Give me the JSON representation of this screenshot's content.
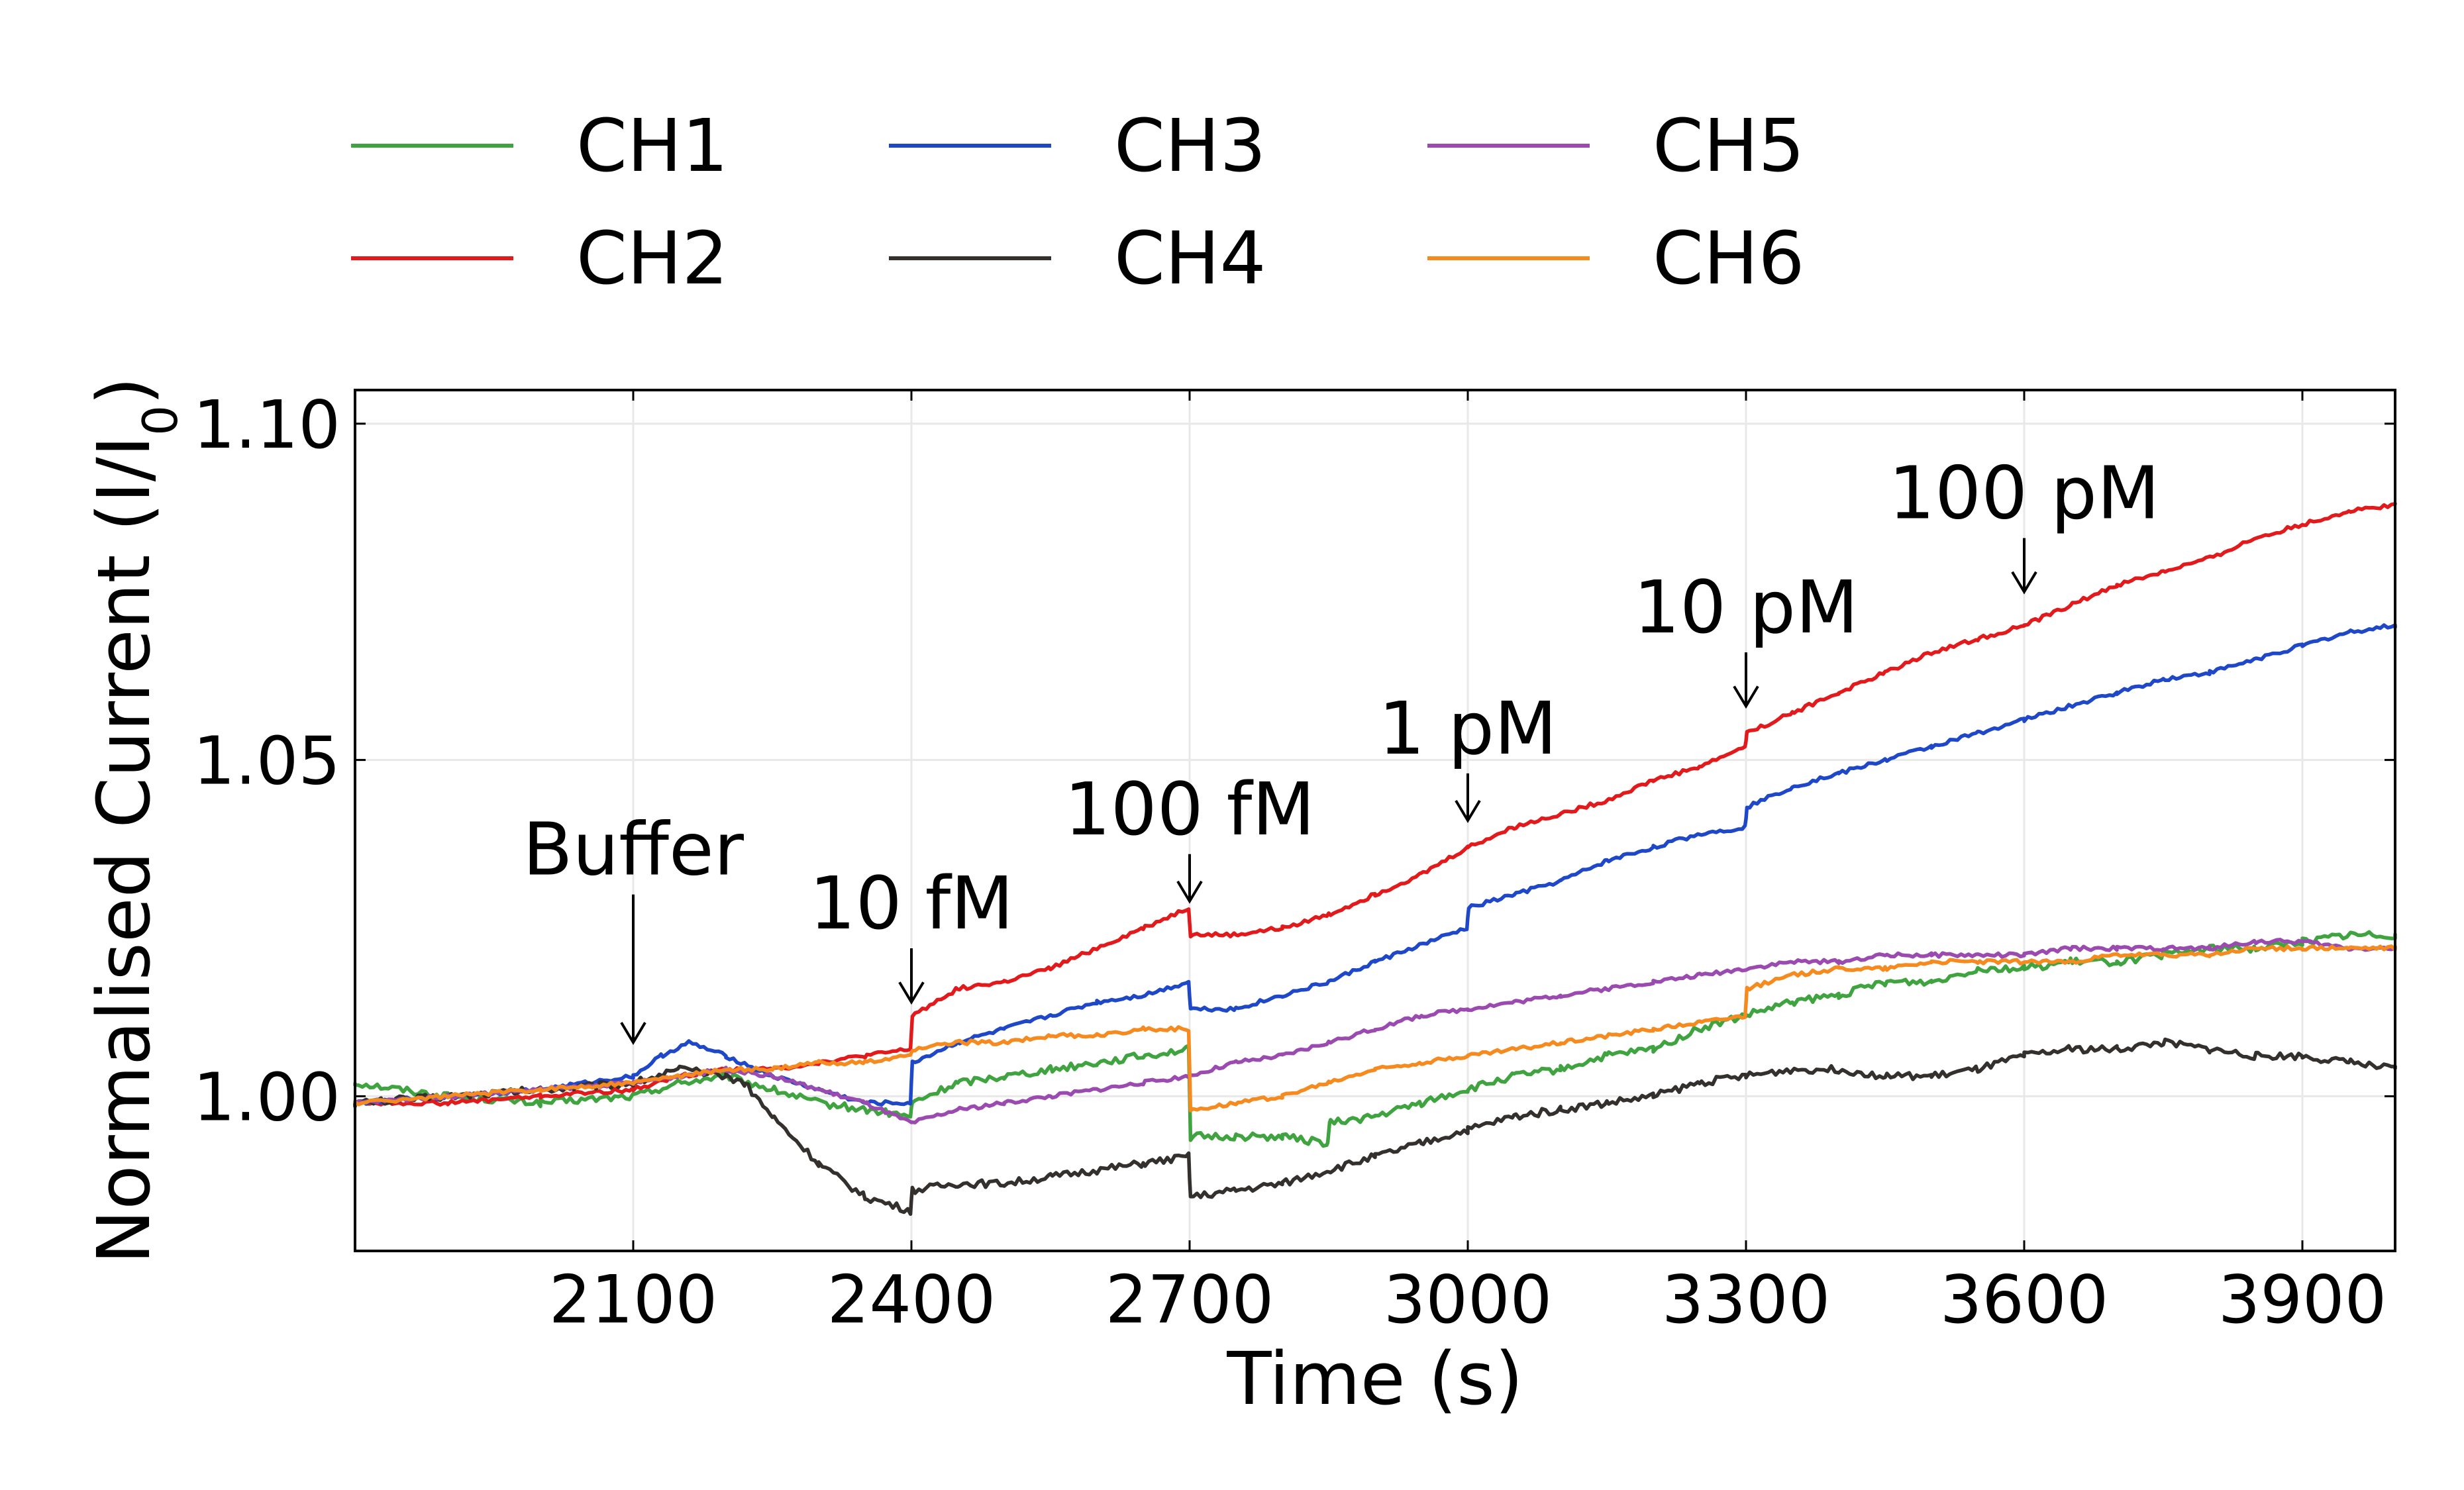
{
  "chart_data": {
    "type": "line",
    "xlabel": "Time (s)",
    "ylabel_main": "Normalised Current (I/I",
    "ylabel_sub": "0",
    "ylabel_end": ")",
    "xlim": [
      1800,
      4000
    ],
    "ylim": [
      0.977,
      1.105
    ],
    "x_ticks": [
      2100,
      2400,
      2700,
      3000,
      3300,
      3600,
      3900
    ],
    "x_tick_labels": [
      "2100",
      "2400",
      "2700",
      "3000",
      "3300",
      "3600",
      "3900"
    ],
    "y_ticks": [
      1.0,
      1.05,
      1.1
    ],
    "y_tick_labels": [
      "1.00",
      "1.05",
      "1.10"
    ],
    "grid": true,
    "legend_placement": "top, outside plot, 3 columns",
    "annotations": [
      {
        "label": "Buffer",
        "x": 2100,
        "y_tip": 1.008,
        "y_tail": 1.03
      },
      {
        "label": "10 fM",
        "x": 2400,
        "y_tip": 1.014,
        "y_tail": 1.022
      },
      {
        "label": "100 fM",
        "x": 2700,
        "y_tip": 1.029,
        "y_tail": 1.036
      },
      {
        "label": "1 pM",
        "x": 3000,
        "y_tip": 1.041,
        "y_tail": 1.048
      },
      {
        "label": "10 pM",
        "x": 3300,
        "y_tip": 1.058,
        "y_tail": 1.066
      },
      {
        "label": "100 pM",
        "x": 3600,
        "y_tip": 1.075,
        "y_tail": 1.083
      }
    ],
    "series": [
      {
        "name": "CH1",
        "color": "#3fa33f",
        "x": [
          1800,
          1900,
          2000,
          2100,
          2150,
          2200,
          2250,
          2300,
          2350,
          2399,
          2401,
          2450,
          2500,
          2550,
          2600,
          2650,
          2699,
          2701,
          2750,
          2800,
          2849,
          2851,
          2900,
          2950,
          3000,
          3050,
          3100,
          3150,
          3200,
          3250,
          3300,
          3350,
          3400,
          3450,
          3500,
          3550,
          3600,
          3650,
          3700,
          3750,
          3800,
          3850,
          3900,
          3950,
          4000
        ],
        "y": [
          1.002,
          1.0,
          0.999,
          1.0,
          1.002,
          1.003,
          1.001,
          0.999,
          0.998,
          0.997,
          0.999,
          1.002,
          1.003,
          1.004,
          1.005,
          1.006,
          1.007,
          0.994,
          0.994,
          0.994,
          0.993,
          0.996,
          0.997,
          0.999,
          1.001,
          1.003,
          1.004,
          1.006,
          1.007,
          1.01,
          1.012,
          1.014,
          1.015,
          1.017,
          1.017,
          1.019,
          1.019,
          1.02,
          1.02,
          1.021,
          1.022,
          1.022,
          1.023,
          1.024,
          1.024
        ]
      },
      {
        "name": "CH2",
        "color": "#e31a1c",
        "x": [
          1800,
          1900,
          2000,
          2100,
          2150,
          2200,
          2250,
          2300,
          2350,
          2399,
          2401,
          2450,
          2500,
          2550,
          2600,
          2650,
          2699,
          2701,
          2750,
          2800,
          2850,
          2900,
          2950,
          3000,
          3050,
          3100,
          3150,
          3200,
          3250,
          3299,
          3301,
          3350,
          3400,
          3450,
          3500,
          3550,
          3600,
          3650,
          3700,
          3750,
          3800,
          3850,
          3900,
          3950,
          4000
        ],
        "y": [
          0.999,
          0.999,
          1.0,
          1.001,
          1.003,
          1.004,
          1.004,
          1.005,
          1.006,
          1.007,
          1.012,
          1.016,
          1.017,
          1.019,
          1.022,
          1.025,
          1.028,
          1.024,
          1.024,
          1.025,
          1.027,
          1.03,
          1.033,
          1.037,
          1.04,
          1.042,
          1.044,
          1.047,
          1.049,
          1.052,
          1.054,
          1.057,
          1.06,
          1.063,
          1.066,
          1.068,
          1.07,
          1.073,
          1.076,
          1.078,
          1.08,
          1.083,
          1.085,
          1.087,
          1.088
        ]
      },
      {
        "name": "CH3",
        "color": "#1f48c8",
        "x": [
          1800,
          1900,
          2000,
          2100,
          2130,
          2160,
          2200,
          2250,
          2300,
          2350,
          2399,
          2401,
          2450,
          2500,
          2550,
          2600,
          2650,
          2699,
          2701,
          2750,
          2800,
          2850,
          2900,
          2999,
          3001,
          3050,
          3100,
          3150,
          3200,
          3250,
          3299,
          3301,
          3350,
          3400,
          3450,
          3500,
          3550,
          3600,
          3650,
          3700,
          3750,
          3800,
          3850,
          3900,
          3950,
          4000
        ],
        "y": [
          0.999,
          1.0,
          1.001,
          1.003,
          1.006,
          1.008,
          1.006,
          1.003,
          1.001,
          0.999,
          0.999,
          1.005,
          1.008,
          1.01,
          1.012,
          1.014,
          1.015,
          1.017,
          1.013,
          1.013,
          1.015,
          1.017,
          1.02,
          1.025,
          1.028,
          1.03,
          1.032,
          1.035,
          1.037,
          1.039,
          1.04,
          1.043,
          1.046,
          1.048,
          1.05,
          1.052,
          1.054,
          1.056,
          1.058,
          1.06,
          1.062,
          1.063,
          1.065,
          1.067,
          1.069,
          1.07
        ]
      },
      {
        "name": "CH4",
        "color": "#33302e",
        "x": [
          1800,
          1900,
          2000,
          2100,
          2150,
          2200,
          2220,
          2250,
          2300,
          2350,
          2399,
          2401,
          2450,
          2500,
          2550,
          2600,
          2650,
          2699,
          2701,
          2750,
          2800,
          2850,
          2900,
          2950,
          3000,
          3050,
          3100,
          3150,
          3200,
          3250,
          3300,
          3350,
          3400,
          3450,
          3500,
          3550,
          3600,
          3650,
          3700,
          3750,
          3800,
          3850,
          3900,
          3950,
          4000
        ],
        "y": [
          0.999,
          1.0,
          1.001,
          1.002,
          1.004,
          1.003,
          1.002,
          0.997,
          0.99,
          0.985,
          0.983,
          0.986,
          0.987,
          0.987,
          0.988,
          0.989,
          0.99,
          0.991,
          0.985,
          0.986,
          0.987,
          0.989,
          0.991,
          0.993,
          0.995,
          0.997,
          0.998,
          0.999,
          1.0,
          1.002,
          1.003,
          1.004,
          1.004,
          1.003,
          1.003,
          1.004,
          1.006,
          1.007,
          1.007,
          1.008,
          1.007,
          1.006,
          1.006,
          1.005,
          1.004
        ]
      },
      {
        "name": "CH5",
        "color": "#9b4bb0",
        "x": [
          1800,
          1900,
          2000,
          2100,
          2150,
          2200,
          2250,
          2300,
          2350,
          2400,
          2450,
          2500,
          2550,
          2600,
          2650,
          2700,
          2750,
          2800,
          2850,
          2900,
          2950,
          3000,
          3050,
          3100,
          3150,
          3200,
          3250,
          3300,
          3350,
          3400,
          3450,
          3500,
          3550,
          3600,
          3650,
          3700,
          3750,
          3800,
          3850,
          3900,
          3950,
          4000
        ],
        "y": [
          0.999,
          1.0,
          1.001,
          1.002,
          1.003,
          1.004,
          1.003,
          1.001,
          0.999,
          0.996,
          0.998,
          0.999,
          1.0,
          1.001,
          1.002,
          1.003,
          1.005,
          1.006,
          1.008,
          1.01,
          1.012,
          1.013,
          1.014,
          1.015,
          1.016,
          1.017,
          1.018,
          1.019,
          1.02,
          1.02,
          1.021,
          1.021,
          1.021,
          1.021,
          1.022,
          1.022,
          1.022,
          1.022,
          1.023,
          1.023,
          1.022,
          1.022
        ]
      },
      {
        "name": "CH6",
        "color": "#f58a1f",
        "x": [
          1800,
          1900,
          2000,
          2100,
          2150,
          2200,
          2250,
          2300,
          2350,
          2399,
          2401,
          2450,
          2500,
          2550,
          2600,
          2650,
          2699,
          2701,
          2750,
          2800,
          2850,
          2900,
          2950,
          3000,
          3050,
          3100,
          3150,
          3200,
          3250,
          3299,
          3301,
          3350,
          3400,
          3450,
          3500,
          3550,
          3600,
          3650,
          3700,
          3750,
          3800,
          3850,
          3900,
          3950,
          4000
        ],
        "y": [
          0.999,
          1.0,
          1.001,
          1.002,
          1.003,
          1.004,
          1.004,
          1.005,
          1.005,
          1.006,
          1.007,
          1.008,
          1.008,
          1.009,
          1.009,
          1.01,
          1.01,
          0.998,
          0.999,
          1.0,
          1.002,
          1.004,
          1.005,
          1.006,
          1.007,
          1.008,
          1.009,
          1.01,
          1.011,
          1.012,
          1.016,
          1.018,
          1.019,
          1.019,
          1.02,
          1.02,
          1.02,
          1.02,
          1.021,
          1.021,
          1.021,
          1.022,
          1.022,
          1.022,
          1.022
        ]
      }
    ]
  }
}
